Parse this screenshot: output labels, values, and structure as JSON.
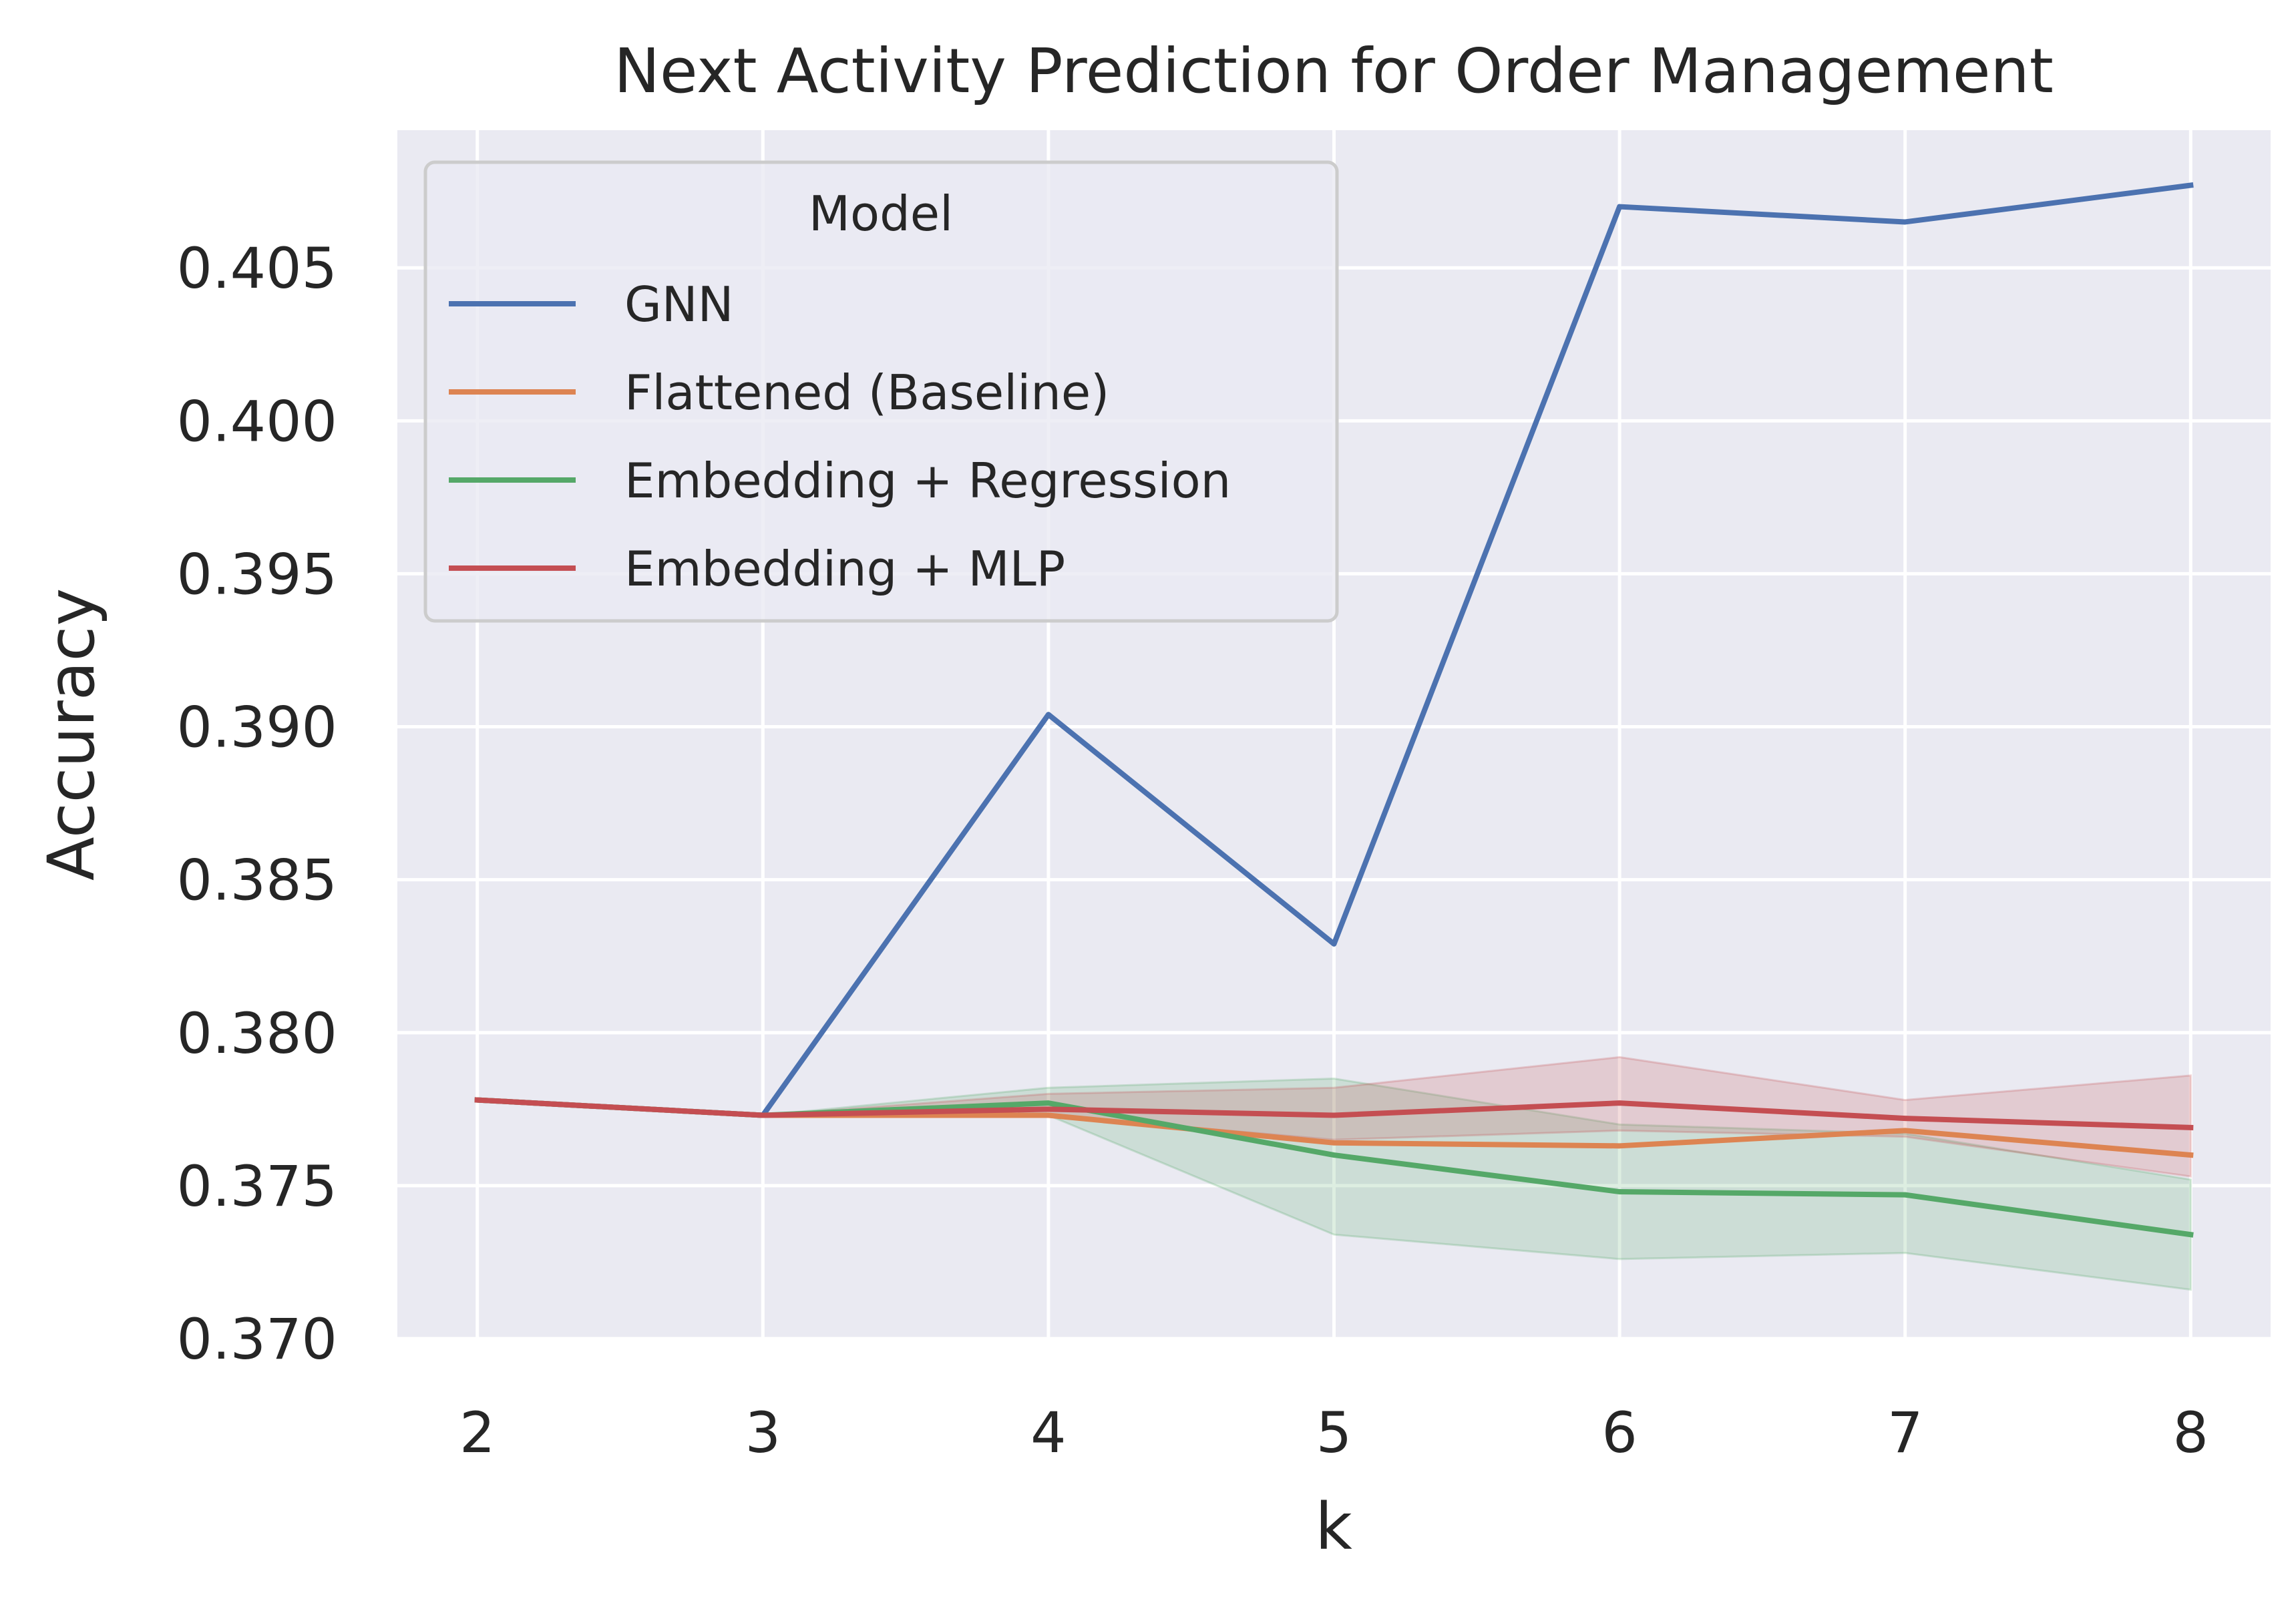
{
  "chart_data": {
    "type": "line",
    "title": "Next Activity Prediction for Order Management",
    "xlabel": "k",
    "ylabel": "Accuracy",
    "x": [
      2,
      3,
      4,
      5,
      6,
      7,
      8
    ],
    "x_ticks": [
      "2",
      "3",
      "4",
      "5",
      "6",
      "7",
      "8"
    ],
    "xlim": [
      1.72,
      8.28
    ],
    "ylim": [
      0.37,
      0.4095
    ],
    "y_ticks": [
      0.37,
      0.375,
      0.38,
      0.385,
      0.39,
      0.395,
      0.4,
      0.405
    ],
    "y_tick_labels": [
      "0.370",
      "0.375",
      "0.380",
      "0.385",
      "0.390",
      "0.395",
      "0.400",
      "0.405"
    ],
    "grid": true,
    "legend": {
      "title": "Model",
      "placement": "top-left"
    },
    "series": [
      {
        "name": "GNN",
        "color": "#4c72b0",
        "values": [
          0.3778,
          0.3773,
          0.3904,
          0.3829,
          0.407,
          0.4065,
          0.4077
        ]
      },
      {
        "name": "Flattened (Baseline)",
        "color": "#dd8452",
        "values": [
          0.3778,
          0.3773,
          0.3773,
          0.3764,
          0.3763,
          0.3768,
          0.376
        ],
        "band_lower": [
          0.3778,
          0.3773,
          0.3773,
          0.3764,
          0.3763,
          0.3768,
          0.376
        ],
        "band_upper": [
          0.3778,
          0.3773,
          0.3773,
          0.3764,
          0.3763,
          0.3768,
          0.376
        ]
      },
      {
        "name": "Embedding + Regression",
        "color": "#55a868",
        "values": [
          0.3778,
          0.3773,
          0.3777,
          0.376,
          0.3748,
          0.3747,
          0.3734
        ],
        "band_lower": [
          0.3778,
          0.3773,
          0.3773,
          0.3734,
          0.3726,
          0.3728,
          0.3716
        ],
        "band_upper": [
          0.3778,
          0.3773,
          0.3782,
          0.3785,
          0.377,
          0.3767,
          0.3752
        ]
      },
      {
        "name": "Embedding + MLP",
        "color": "#c44e52",
        "values": [
          0.3778,
          0.3773,
          0.3775,
          0.3773,
          0.3777,
          0.3772,
          0.3769
        ],
        "band_lower": [
          0.3778,
          0.3773,
          0.3773,
          0.3765,
          0.3768,
          0.3766,
          0.3753
        ],
        "band_upper": [
          0.3778,
          0.3773,
          0.378,
          0.3782,
          0.3792,
          0.3778,
          0.3786
        ]
      }
    ]
  }
}
